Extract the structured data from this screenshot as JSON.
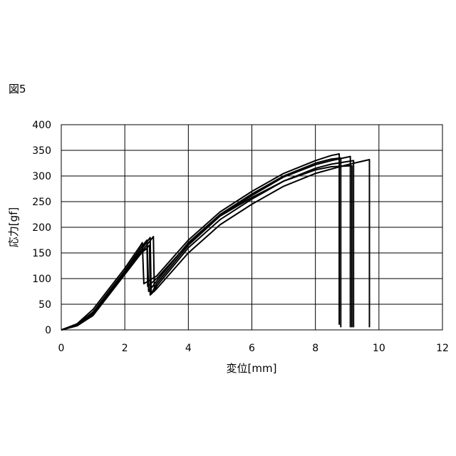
{
  "figure_label": "図5",
  "chart_data": {
    "type": "line",
    "title": "",
    "xlabel": "変位[mm]",
    "ylabel": "応力[gf]",
    "xlim": [
      0,
      12
    ],
    "ylim": [
      0,
      400
    ],
    "xticks": [
      0,
      2,
      4,
      6,
      8,
      10,
      12
    ],
    "yticks": [
      0,
      50,
      100,
      150,
      200,
      250,
      300,
      350,
      400
    ],
    "grid": true,
    "legend": "none",
    "line_color": "#000000",
    "series": [
      {
        "x": [
          0,
          0.5,
          1.0,
          1.5,
          2.0,
          2.5,
          2.55,
          2.6,
          3.0,
          4.0,
          5.0,
          6.0,
          7.0,
          8.0,
          8.5,
          8.75,
          8.75
        ],
        "y": [
          0,
          12,
          40,
          80,
          120,
          165,
          170,
          90,
          105,
          175,
          230,
          270,
          305,
          330,
          340,
          343,
          10
        ]
      },
      {
        "x": [
          0,
          0.5,
          1.0,
          1.5,
          2.0,
          2.5,
          2.7,
          2.75,
          3.0,
          4.0,
          5.0,
          6.0,
          7.0,
          8.0,
          8.5,
          8.8,
          8.8
        ],
        "y": [
          0,
          10,
          35,
          75,
          115,
          160,
          175,
          75,
          95,
          170,
          225,
          265,
          300,
          325,
          333,
          335,
          5
        ]
      },
      {
        "x": [
          0,
          0.5,
          1.0,
          1.5,
          2.0,
          2.5,
          2.8,
          2.83,
          3.0,
          4.0,
          5.0,
          6.0,
          7.0,
          8.0,
          8.5,
          9.1,
          9.1
        ],
        "y": [
          0,
          9,
          33,
          72,
          112,
          155,
          180,
          70,
          90,
          165,
          222,
          262,
          298,
          322,
          330,
          338,
          5
        ]
      },
      {
        "x": [
          0,
          0.5,
          1.0,
          1.5,
          2.0,
          2.5,
          2.9,
          2.93,
          3.0,
          4.0,
          5.0,
          6.0,
          7.0,
          8.0,
          8.5,
          9.2,
          9.2
        ],
        "y": [
          0,
          8,
          30,
          70,
          110,
          150,
          182,
          75,
          85,
          160,
          215,
          255,
          290,
          315,
          323,
          330,
          5
        ]
      },
      {
        "x": [
          0,
          0.5,
          1.0,
          1.5,
          2.0,
          2.5,
          2.78,
          2.8,
          3.0,
          4.0,
          5.0,
          6.0,
          7.0,
          8.0,
          9.0,
          9.7,
          9.7
        ],
        "y": [
          0,
          8,
          28,
          68,
          108,
          148,
          165,
          68,
          80,
          150,
          205,
          245,
          280,
          305,
          322,
          332,
          5
        ]
      },
      {
        "x": [
          0,
          0.5,
          1.0,
          1.5,
          2.0,
          2.5,
          2.7,
          2.72,
          3.0,
          4.0,
          5.0,
          6.0,
          7.0,
          8.0,
          8.5,
          9.15,
          9.15
        ],
        "y": [
          0,
          9,
          32,
          72,
          110,
          152,
          158,
          85,
          100,
          168,
          222,
          258,
          290,
          312,
          318,
          320,
          5
        ]
      }
    ]
  }
}
